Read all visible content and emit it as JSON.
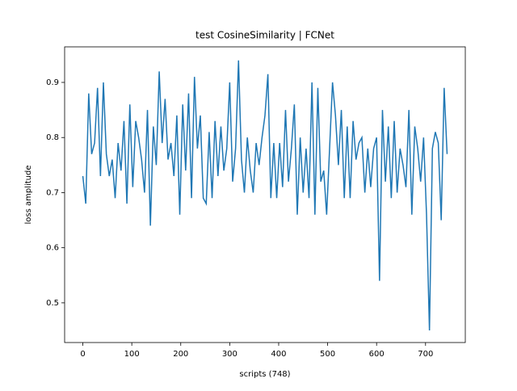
{
  "chart_data": {
    "type": "line",
    "title": "test CosineSimilarity | FCNet",
    "x_label": "scripts (748)",
    "y_label": "loss amplitude",
    "x": [
      0,
      6,
      12,
      18,
      24,
      30,
      36,
      42,
      48,
      54,
      60,
      66,
      72,
      78,
      84,
      90,
      96,
      102,
      108,
      114,
      120,
      126,
      132,
      138,
      144,
      150,
      156,
      162,
      168,
      174,
      180,
      186,
      192,
      198,
      204,
      210,
      216,
      222,
      228,
      234,
      240,
      246,
      252,
      258,
      264,
      270,
      276,
      282,
      288,
      294,
      300,
      306,
      312,
      318,
      324,
      330,
      336,
      342,
      348,
      354,
      360,
      366,
      372,
      378,
      384,
      390,
      396,
      402,
      408,
      414,
      420,
      426,
      432,
      438,
      444,
      450,
      456,
      462,
      468,
      474,
      480,
      486,
      492,
      498,
      504,
      510,
      516,
      522,
      528,
      534,
      540,
      546,
      552,
      558,
      564,
      570,
      576,
      582,
      588,
      594,
      600,
      606,
      612,
      618,
      624,
      630,
      636,
      642,
      648,
      654,
      660,
      666,
      672,
      678,
      684,
      690,
      696,
      702,
      708,
      714,
      720,
      726,
      732,
      738,
      744
    ],
    "series": [
      {
        "name": "loss",
        "color": "#1f77b4",
        "values": [
          0.73,
          0.68,
          0.88,
          0.77,
          0.79,
          0.89,
          0.73,
          0.9,
          0.77,
          0.73,
          0.76,
          0.69,
          0.79,
          0.74,
          0.83,
          0.68,
          0.86,
          0.71,
          0.83,
          0.8,
          0.76,
          0.7,
          0.85,
          0.64,
          0.82,
          0.75,
          0.92,
          0.79,
          0.87,
          0.76,
          0.79,
          0.73,
          0.84,
          0.66,
          0.86,
          0.74,
          0.88,
          0.69,
          0.91,
          0.78,
          0.84,
          0.69,
          0.68,
          0.81,
          0.69,
          0.83,
          0.73,
          0.82,
          0.74,
          0.78,
          0.9,
          0.72,
          0.78,
          0.94,
          0.76,
          0.7,
          0.8,
          0.74,
          0.7,
          0.79,
          0.75,
          0.8,
          0.84,
          0.915,
          0.69,
          0.79,
          0.69,
          0.79,
          0.71,
          0.85,
          0.72,
          0.78,
          0.86,
          0.66,
          0.8,
          0.7,
          0.78,
          0.69,
          0.9,
          0.66,
          0.89,
          0.72,
          0.74,
          0.66,
          0.78,
          0.9,
          0.84,
          0.75,
          0.85,
          0.69,
          0.82,
          0.69,
          0.83,
          0.76,
          0.79,
          0.8,
          0.7,
          0.78,
          0.71,
          0.78,
          0.8,
          0.54,
          0.85,
          0.72,
          0.82,
          0.69,
          0.83,
          0.7,
          0.78,
          0.75,
          0.71,
          0.85,
          0.66,
          0.82,
          0.78,
          0.72,
          0.8,
          0.66,
          0.45,
          0.78,
          0.81,
          0.79,
          0.65,
          0.89,
          0.77
        ]
      }
    ],
    "xlim": [
      -37.2,
      781.2
    ],
    "ylim": [
      0.428,
      0.9645
    ],
    "xticks": [
      0,
      100,
      200,
      300,
      400,
      500,
      600,
      700
    ],
    "yticks": [
      0.5,
      0.6,
      0.7,
      0.8,
      0.9
    ]
  }
}
